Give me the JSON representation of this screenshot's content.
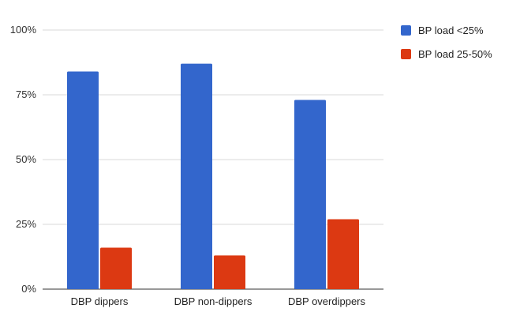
{
  "chart_data": {
    "type": "bar",
    "categories": [
      "DBP dippers",
      "DBP non-dippers",
      "DBP overdippers"
    ],
    "series": [
      {
        "name": "BP load <25%",
        "color": "#3366cc",
        "values": [
          84,
          87,
          73
        ]
      },
      {
        "name": "BP load 25-50%",
        "color": "#dc3912",
        "values": [
          16,
          13,
          27
        ]
      }
    ],
    "yticks": [
      "0%",
      "25%",
      "50%",
      "75%",
      "100%"
    ],
    "ylim": [
      0,
      100
    ],
    "grid": true,
    "legend_position": "right"
  }
}
